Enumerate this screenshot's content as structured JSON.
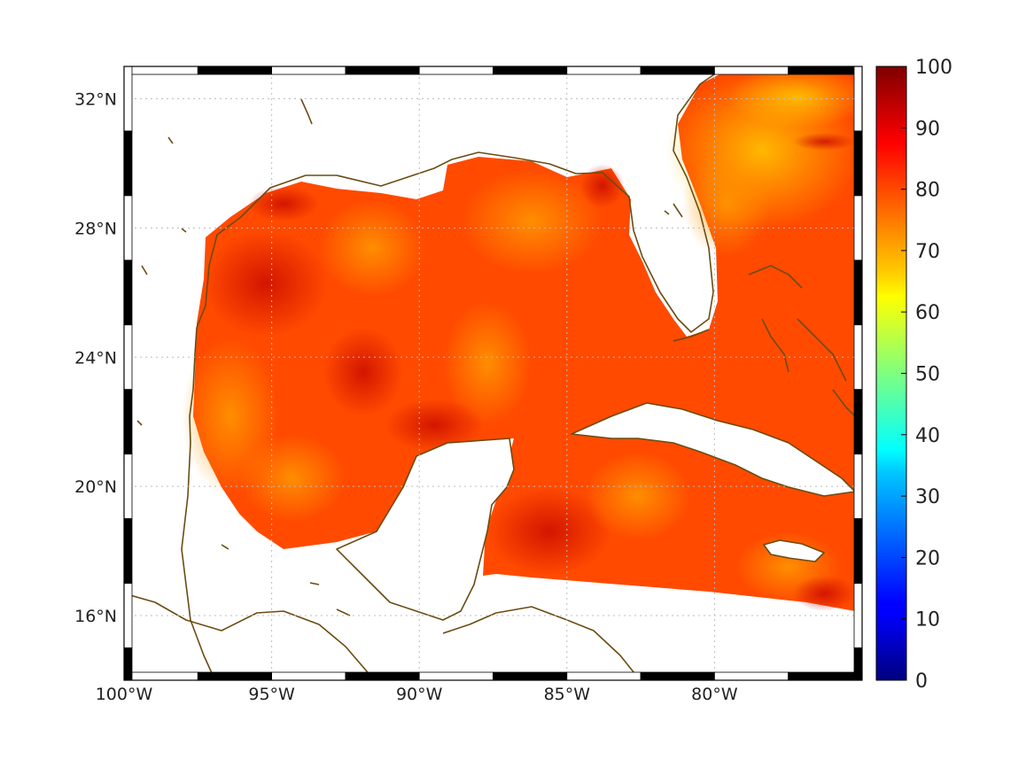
{
  "map": {
    "lon_range": [
      -100,
      -75
    ],
    "lat_range": [
      14,
      33
    ],
    "lon_ticks": [
      {
        "value": -100,
        "label": "100°W"
      },
      {
        "value": -95,
        "label": "95°W"
      },
      {
        "value": -90,
        "label": "90°W"
      },
      {
        "value": -85,
        "label": "85°W"
      },
      {
        "value": -80,
        "label": "80°W"
      }
    ],
    "lat_ticks": [
      {
        "value": 32,
        "label": "32°N"
      },
      {
        "value": 28,
        "label": "28°N"
      },
      {
        "value": 24,
        "label": "24°N"
      },
      {
        "value": 20,
        "label": "20°N"
      },
      {
        "value": 16,
        "label": "16°N"
      }
    ],
    "grid": true,
    "coastline_color": "#6b4c12",
    "field_dominant_colors": [
      "#ff7f00",
      "#ff3a00",
      "#e01000",
      "#ffc000"
    ]
  },
  "colorbar": {
    "colormap": "jet",
    "min": 0,
    "max": 100,
    "ticks": [
      "100",
      "90",
      "80",
      "70",
      "60",
      "50",
      "40",
      "30",
      "20",
      "10",
      "0"
    ]
  }
}
